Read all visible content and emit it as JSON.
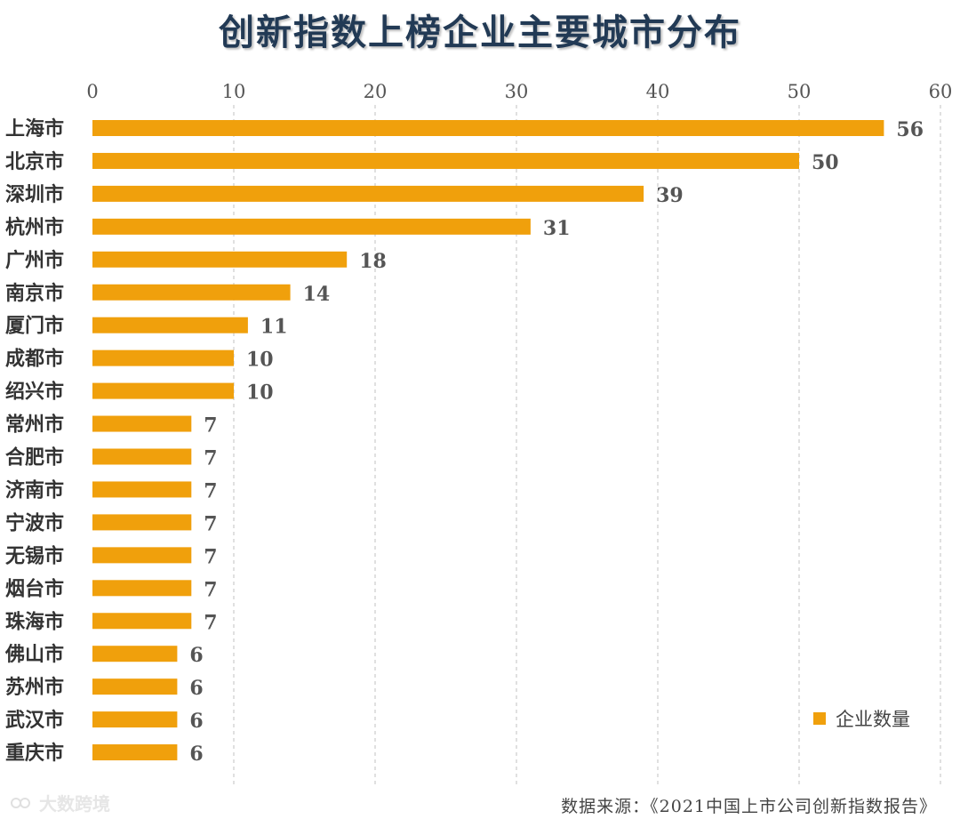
{
  "chart_data": {
    "type": "bar",
    "orientation": "horizontal",
    "title": "创新指数上榜企业主要城市分布",
    "categories": [
      "上海市",
      "北京市",
      "深圳市",
      "杭州市",
      "广州市",
      "南京市",
      "厦门市",
      "成都市",
      "绍兴市",
      "常州市",
      "合肥市",
      "济南市",
      "宁波市",
      "无锡市",
      "烟台市",
      "珠海市",
      "佛山市",
      "苏州市",
      "武汉市",
      "重庆市"
    ],
    "series": [
      {
        "name": "企业数量",
        "values": [
          56,
          50,
          39,
          31,
          18,
          14,
          11,
          10,
          10,
          7,
          7,
          7,
          7,
          7,
          7,
          7,
          6,
          6,
          6,
          6
        ]
      }
    ],
    "xlim": [
      0,
      60
    ],
    "xticks": [
      0,
      10,
      20,
      30,
      40,
      50,
      60
    ],
    "xaxis_position": "top",
    "grid": "vertical-dashed",
    "legend_position": "bottom-right",
    "colors": {
      "bar": "#f0a00c",
      "grid": "#cccccc"
    }
  },
  "footer": {
    "source": "数据来源：《2021中国上市公司创新指数报告》",
    "watermark": "大数跨境"
  }
}
